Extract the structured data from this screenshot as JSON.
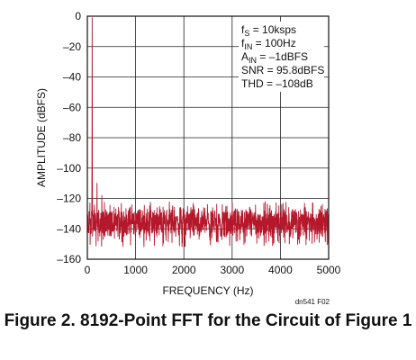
{
  "chart_data": {
    "type": "line",
    "xlabel": "FREQUENCY (Hz)",
    "ylabel": "AMPLITUDE (dBFS)",
    "xlim": [
      0,
      5000
    ],
    "ylim": [
      -160,
      0
    ],
    "x_ticks": [
      "0",
      "1000",
      "2000",
      "3000",
      "4000",
      "5000"
    ],
    "y_ticks": [
      "0",
      "–20",
      "–40",
      "–60",
      "–80",
      "–100",
      "–120",
      "–140",
      "–160"
    ],
    "grid": true,
    "series": [
      {
        "color": "#b5172b",
        "noise_floor_db": -136,
        "noise_spread_db": [
          -152,
          -122
        ],
        "peaks": [
          {
            "x": 100,
            "y": -1
          },
          {
            "x": 200,
            "y": -110
          },
          {
            "x": 300,
            "y": -118
          }
        ]
      }
    ],
    "annotation": {
      "fs_base": "f",
      "fs_sub": "S",
      "fs_value": " = 10ksps",
      "fin_base": "f",
      "fin_sub": "IN",
      "fin_value": " = 100Hz",
      "ain_base": "A",
      "ain_sub": "IN",
      "ain_value": " = –1dBFS",
      "snr": "SNR = 95.8dBFS",
      "thd": "THD = –108dB"
    }
  },
  "figure_id": "dn541 F02",
  "caption": "Figure 2. 8192-Point FFT for the Circuit of Figure 1"
}
